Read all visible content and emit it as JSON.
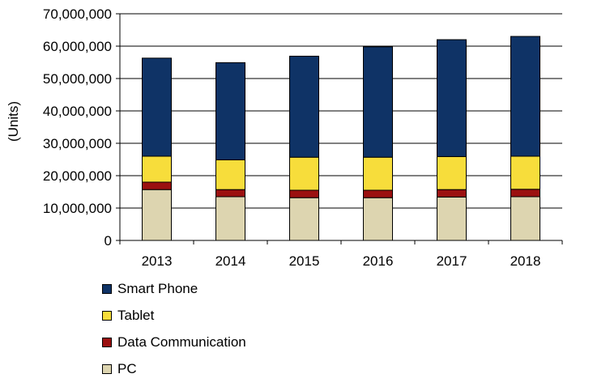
{
  "chart_data": {
    "type": "bar",
    "stacked": true,
    "categories": [
      "2013",
      "2014",
      "2015",
      "2016",
      "2017",
      "2018"
    ],
    "series": [
      {
        "name": "PC",
        "color": "#ddd5b0",
        "values": [
          15700000,
          13500000,
          13200000,
          13200000,
          13400000,
          13500000
        ]
      },
      {
        "name": "Data Communication",
        "color": "#9b1010",
        "values": [
          2300000,
          2200000,
          2300000,
          2300000,
          2300000,
          2300000
        ]
      },
      {
        "name": "Tablet",
        "color": "#f7dd3b",
        "values": [
          8000000,
          9200000,
          10200000,
          10200000,
          10200000,
          10200000
        ]
      },
      {
        "name": "Smart Phone",
        "color": "#0f3366",
        "values": [
          30300000,
          30000000,
          31200000,
          34100000,
          36100000,
          37000000
        ]
      }
    ],
    "ylabel": "(Units)",
    "ylim": [
      0,
      70000000
    ],
    "yticks": [
      "0",
      "10,000,000",
      "20,000,000",
      "30,000,000",
      "40,000,000",
      "50,000,000",
      "60,000,000",
      "70,000,000"
    ],
    "ytick_values": [
      0,
      10000000,
      20000000,
      30000000,
      40000000,
      50000000,
      60000000,
      70000000
    ],
    "legend": [
      "Smart Phone",
      "Tablet",
      "Data Communication",
      "PC"
    ]
  }
}
